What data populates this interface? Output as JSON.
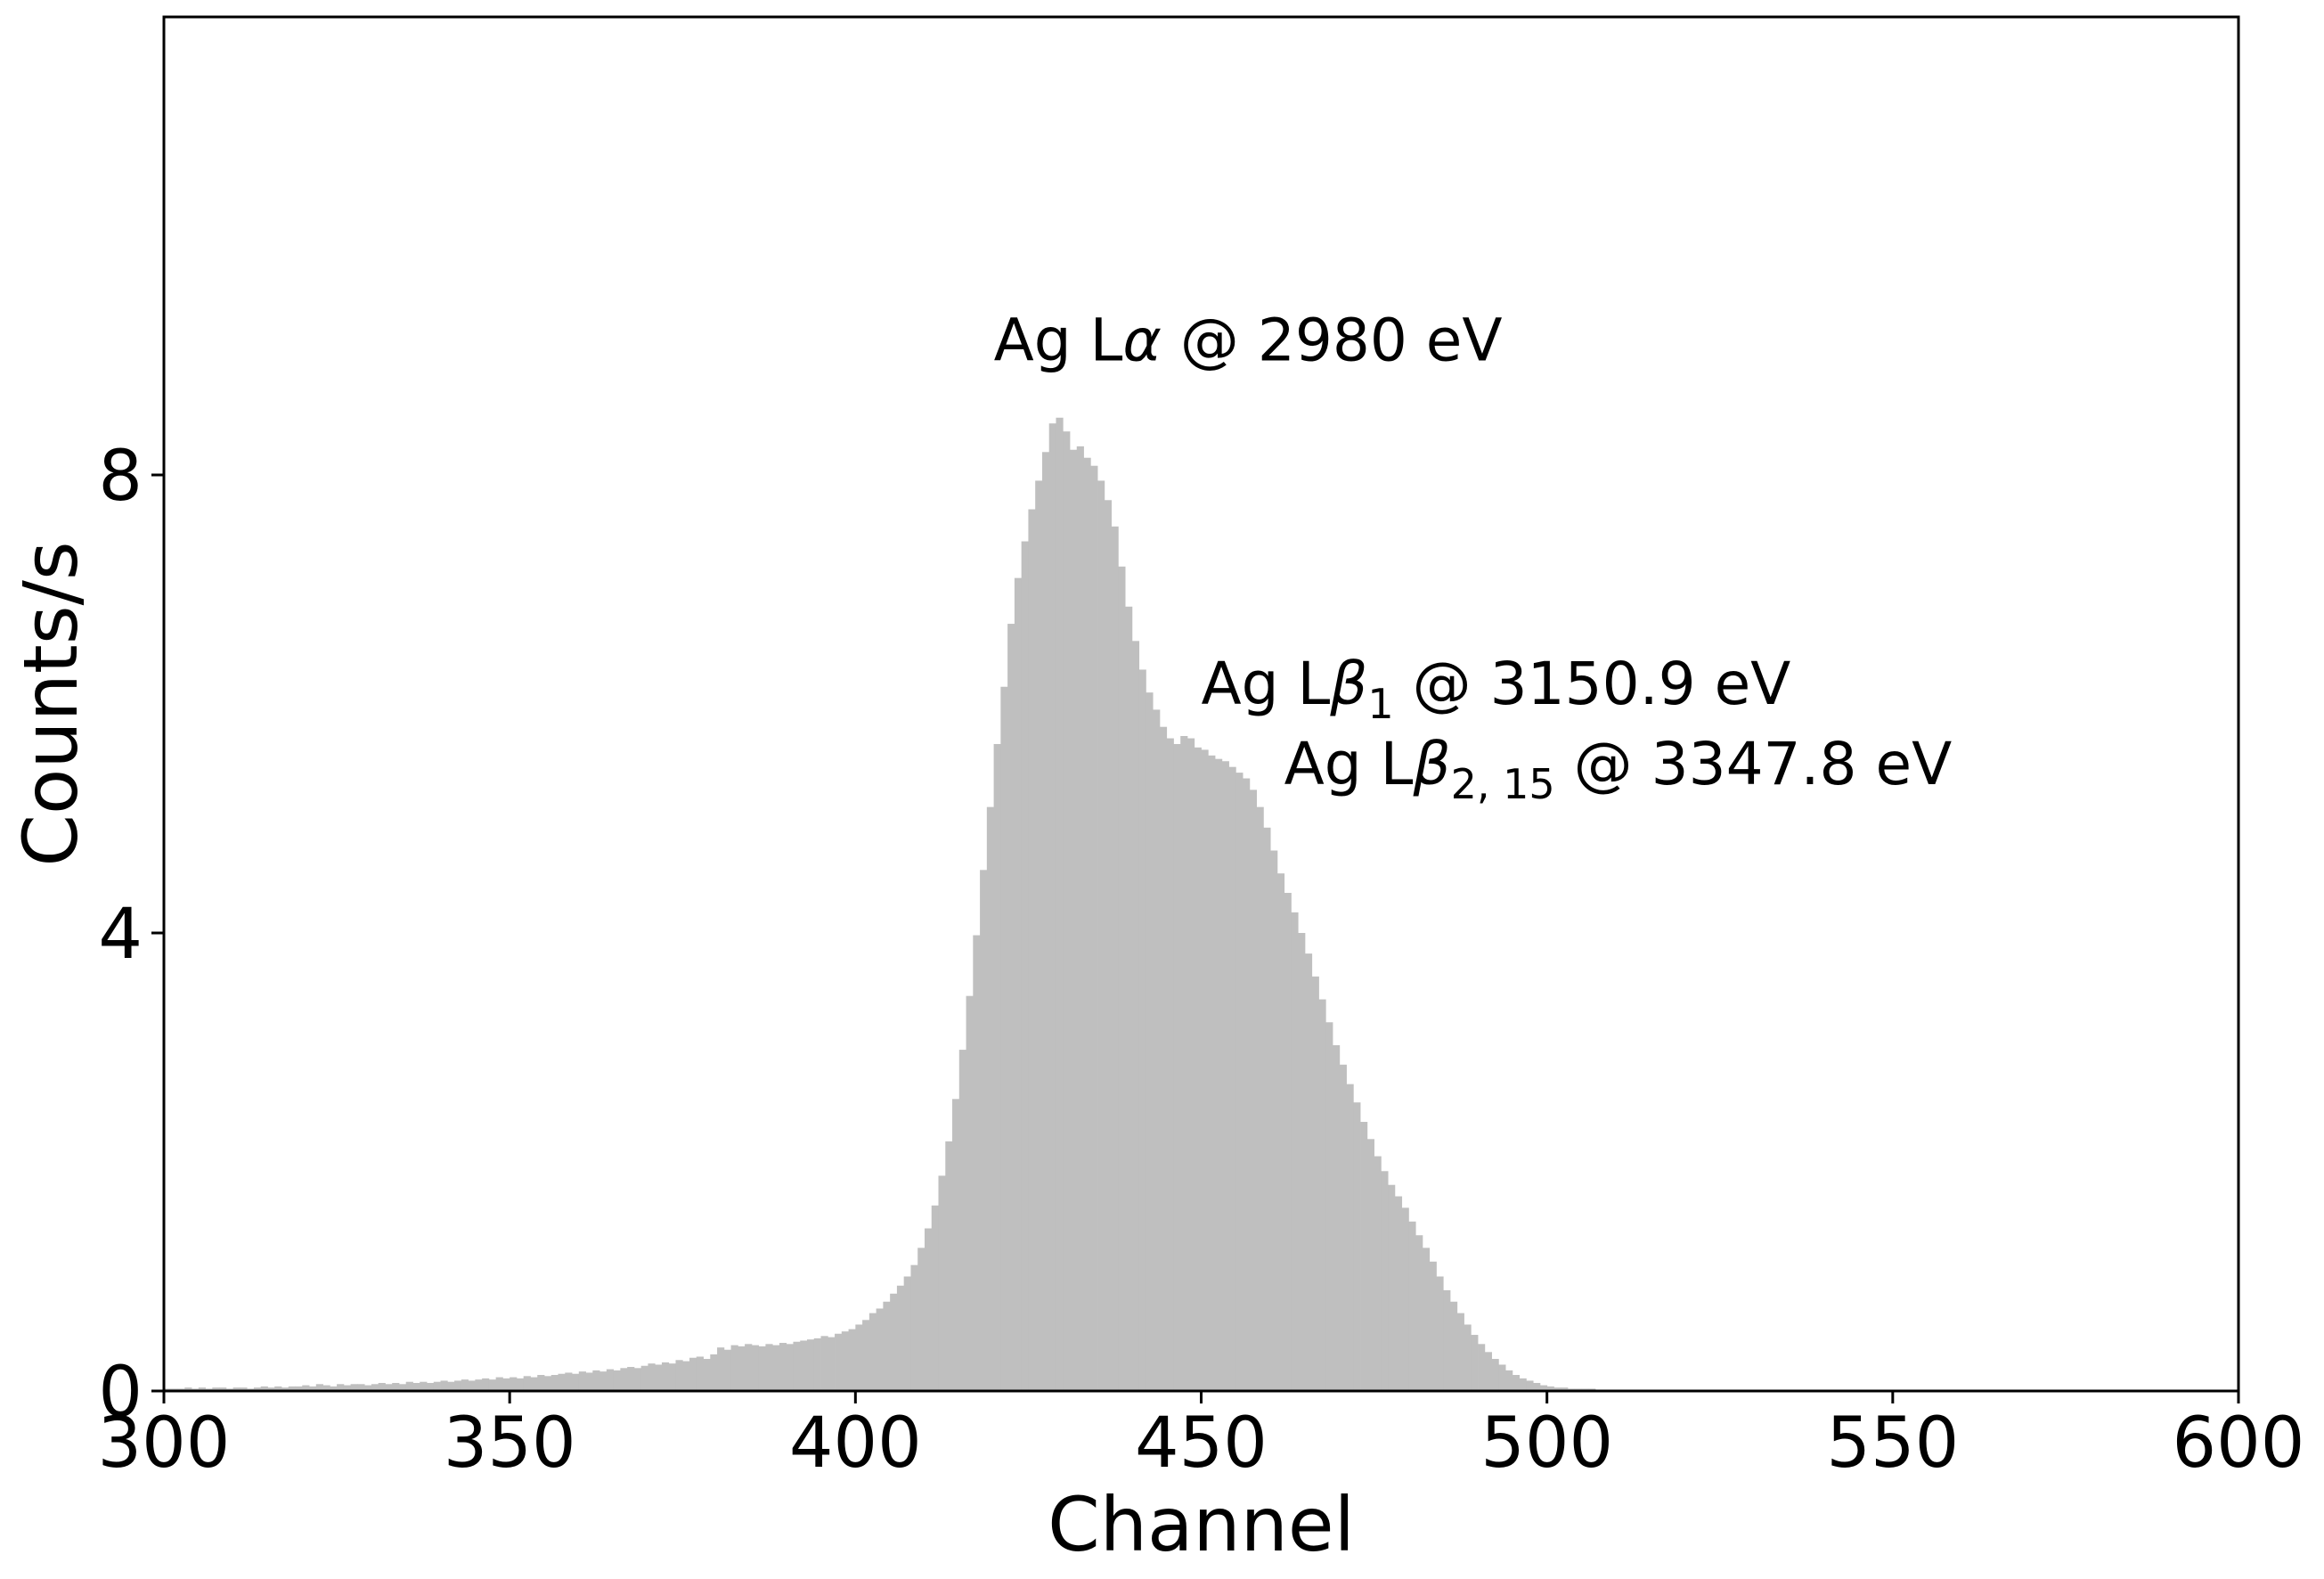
{
  "chart_data": {
    "type": "bar",
    "subtype": "histogram",
    "xlabel": "Channel",
    "ylabel": "Counts/s",
    "xlim": [
      300,
      600
    ],
    "ylim": [
      0,
      12
    ],
    "xticks": [
      300,
      350,
      400,
      450,
      500,
      550,
      600
    ],
    "xtick_labels": [
      "300",
      "350",
      "400",
      "450",
      "500",
      "550",
      "600"
    ],
    "yticks": [
      0,
      4,
      8
    ],
    "ytick_labels": [
      "0",
      "4",
      "8"
    ],
    "grid": false,
    "bar_color": "#bfbfbf",
    "bin_width": 1,
    "x": [
      300,
      301,
      302,
      303,
      304,
      305,
      306,
      307,
      308,
      309,
      310,
      311,
      312,
      313,
      314,
      315,
      316,
      317,
      318,
      319,
      320,
      321,
      322,
      323,
      324,
      325,
      326,
      327,
      328,
      329,
      330,
      331,
      332,
      333,
      334,
      335,
      336,
      337,
      338,
      339,
      340,
      341,
      342,
      343,
      344,
      345,
      346,
      347,
      348,
      349,
      350,
      351,
      352,
      353,
      354,
      355,
      356,
      357,
      358,
      359,
      360,
      361,
      362,
      363,
      364,
      365,
      366,
      367,
      368,
      369,
      370,
      371,
      372,
      373,
      374,
      375,
      376,
      377,
      378,
      379,
      380,
      381,
      382,
      383,
      384,
      385,
      386,
      387,
      388,
      389,
      390,
      391,
      392,
      393,
      394,
      395,
      396,
      397,
      398,
      399,
      400,
      401,
      402,
      403,
      404,
      405,
      406,
      407,
      408,
      409,
      410,
      411,
      412,
      413,
      414,
      415,
      416,
      417,
      418,
      419,
      420,
      421,
      422,
      423,
      424,
      425,
      426,
      427,
      428,
      429,
      430,
      431,
      432,
      433,
      434,
      435,
      436,
      437,
      438,
      439,
      440,
      441,
      442,
      443,
      444,
      445,
      446,
      447,
      448,
      449,
      450,
      451,
      452,
      453,
      454,
      455,
      456,
      457,
      458,
      459,
      460,
      461,
      462,
      463,
      464,
      465,
      466,
      467,
      468,
      469,
      470,
      471,
      472,
      473,
      474,
      475,
      476,
      477,
      478,
      479,
      480,
      481,
      482,
      483,
      484,
      485,
      486,
      487,
      488,
      489,
      490,
      491,
      492,
      493,
      494,
      495,
      496,
      497,
      498,
      499,
      500,
      501,
      502,
      503,
      504,
      505,
      506,
      507,
      508,
      509,
      510,
      511,
      512,
      513,
      514,
      515,
      516,
      517,
      518,
      519,
      520,
      521,
      522,
      523,
      524,
      525,
      526,
      527,
      528,
      529,
      530,
      531,
      532,
      533,
      534,
      535,
      536,
      537,
      538,
      539,
      540,
      541,
      542,
      543,
      544,
      545,
      546,
      547,
      548,
      549,
      550,
      551,
      552,
      553,
      554,
      555,
      556,
      557,
      558,
      559,
      560,
      561,
      562,
      563,
      564,
      565,
      566,
      567,
      568,
      569,
      570,
      571,
      572,
      573,
      574,
      575,
      576,
      577,
      578,
      579,
      580,
      581,
      582,
      583,
      584,
      585,
      586,
      587,
      588,
      589,
      590,
      591,
      592,
      593,
      594,
      595,
      596,
      597,
      598,
      599
    ],
    "values": [
      0.02,
      0.02,
      0.02,
      0.03,
      0.02,
      0.03,
      0.02,
      0.03,
      0.03,
      0.02,
      0.03,
      0.03,
      0.02,
      0.03,
      0.04,
      0.03,
      0.04,
      0.03,
      0.04,
      0.04,
      0.05,
      0.04,
      0.06,
      0.05,
      0.04,
      0.06,
      0.05,
      0.06,
      0.06,
      0.05,
      0.06,
      0.07,
      0.06,
      0.07,
      0.06,
      0.08,
      0.07,
      0.08,
      0.07,
      0.08,
      0.09,
      0.08,
      0.09,
      0.1,
      0.09,
      0.1,
      0.11,
      0.1,
      0.12,
      0.11,
      0.12,
      0.11,
      0.13,
      0.12,
      0.14,
      0.13,
      0.14,
      0.15,
      0.16,
      0.15,
      0.17,
      0.16,
      0.18,
      0.17,
      0.19,
      0.18,
      0.2,
      0.21,
      0.2,
      0.22,
      0.24,
      0.23,
      0.25,
      0.24,
      0.27,
      0.26,
      0.29,
      0.3,
      0.28,
      0.32,
      0.38,
      0.36,
      0.4,
      0.39,
      0.41,
      0.4,
      0.39,
      0.41,
      0.4,
      0.42,
      0.41,
      0.43,
      0.44,
      0.45,
      0.46,
      0.48,
      0.47,
      0.5,
      0.52,
      0.54,
      0.58,
      0.62,
      0.68,
      0.72,
      0.78,
      0.85,
      0.92,
      1.0,
      1.1,
      1.25,
      1.42,
      1.62,
      1.88,
      2.18,
      2.55,
      2.98,
      3.45,
      3.98,
      4.55,
      5.1,
      5.65,
      6.15,
      6.7,
      7.1,
      7.42,
      7.7,
      7.95,
      8.2,
      8.45,
      8.5,
      8.38,
      8.22,
      8.25,
      8.15,
      8.08,
      7.95,
      7.78,
      7.55,
      7.2,
      6.85,
      6.55,
      6.3,
      6.1,
      5.95,
      5.8,
      5.7,
      5.65,
      5.72,
      5.7,
      5.62,
      5.6,
      5.55,
      5.52,
      5.5,
      5.45,
      5.4,
      5.35,
      5.25,
      5.1,
      4.92,
      4.72,
      4.52,
      4.35,
      4.18,
      4.0,
      3.82,
      3.62,
      3.42,
      3.22,
      3.02,
      2.85,
      2.68,
      2.52,
      2.35,
      2.2,
      2.05,
      1.92,
      1.8,
      1.7,
      1.6,
      1.48,
      1.36,
      1.25,
      1.13,
      1.0,
      0.88,
      0.78,
      0.68,
      0.58,
      0.49,
      0.41,
      0.34,
      0.28,
      0.23,
      0.18,
      0.14,
      0.11,
      0.09,
      0.07,
      0.05,
      0.04,
      0.03,
      0.03,
      0.02,
      0.02,
      0.02,
      0.02,
      0.01,
      0.01,
      0.01,
      0.01,
      0.01,
      0.01,
      0.01,
      0.01,
      0.01,
      0.01,
      0.01,
      0.01,
      0.01,
      0.01,
      0.01,
      0.01,
      0.01,
      0.01,
      0.01,
      0.01,
      0.01,
      0.01,
      0.01,
      0.01,
      0.01,
      0.01,
      0.01,
      0.01,
      0.01,
      0.01,
      0.01,
      0.01,
      0.01,
      0.01,
      0.01,
      0.01,
      0.01,
      0.01,
      0.01,
      0.01,
      0.01,
      0.01,
      0.01,
      0.01,
      0.01,
      0.01,
      0.01,
      0.01,
      0.01,
      0.01,
      0.01,
      0.01,
      0.01,
      0.01,
      0.01,
      0.01,
      0.01,
      0.01,
      0.01,
      0.01,
      0.01,
      0.01,
      0.01,
      0.01,
      0.01,
      0.01,
      0.01,
      0.01,
      0.01,
      0.01,
      0.01,
      0.01,
      0.01,
      0.01,
      0.01,
      0.01,
      0.01,
      0.01,
      0.01,
      0.01,
      0.01,
      0.01,
      0.01,
      0.01,
      0.01,
      0.01,
      0.01,
      0.01,
      0.01,
      0.01,
      0.01,
      0.01,
      0.01
    ],
    "annotations": [
      {
        "element": "Ag L",
        "symbol": "α",
        "subscript": "",
        "rest": " @ 2980 eV",
        "x": 420,
        "y": 9.0
      },
      {
        "element": "Ag L",
        "symbol": "β",
        "subscript": "1",
        "rest": " @ 3150.9 eV",
        "x": 450,
        "y": 6.0
      },
      {
        "element": "Ag L",
        "symbol": "β",
        "subscript": "2, 15",
        "rest": " @ 3347.8 eV",
        "x": 462,
        "y": 5.3
      }
    ]
  }
}
